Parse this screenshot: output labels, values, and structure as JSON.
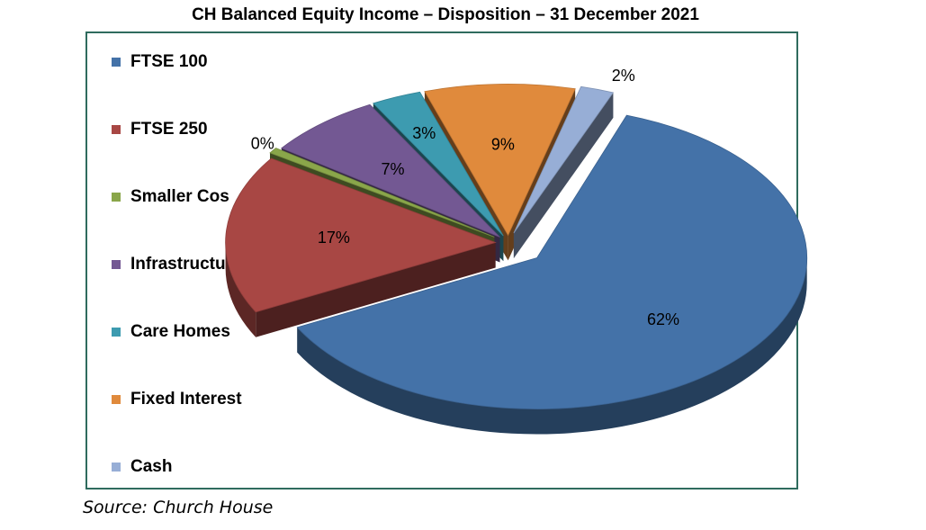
{
  "chart_data": {
    "type": "pie",
    "title": "CH Balanced Equity Income – Disposition – 31 December 2021",
    "categories": [
      "FTSE 100",
      "FTSE 250",
      "Smaller Cos",
      "Infrastructure",
      "Care Homes",
      "Fixed Interest",
      "Cash"
    ],
    "values": [
      62,
      17,
      0,
      7,
      3,
      9,
      2
    ],
    "data_labels": [
      "62%",
      "17%",
      "0%",
      "7%",
      "3%",
      "9%",
      "2%"
    ],
    "colors": [
      "#4472a8",
      "#a84744",
      "#8aa64a",
      "#735893",
      "#3d9bb0",
      "#e08a3c",
      "#97aed6"
    ],
    "legend_placement": "left",
    "exploded": true,
    "three_d": true
  },
  "source": "Source: Church House"
}
